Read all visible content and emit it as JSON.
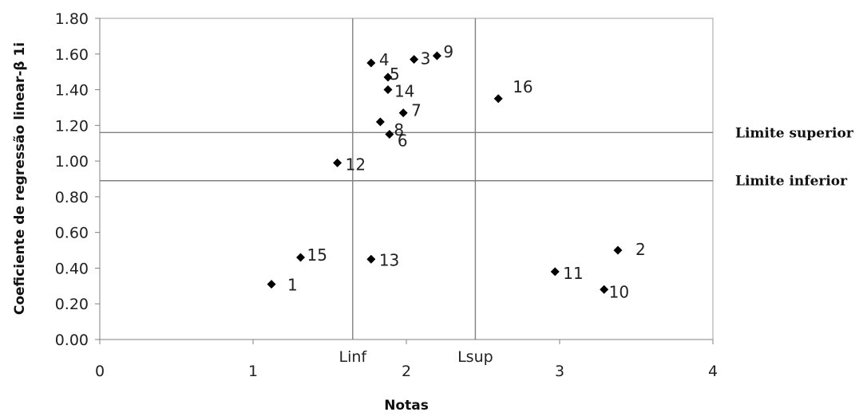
{
  "chart_data": {
    "type": "scatter",
    "xlabel": "Notas",
    "ylabel": "Coeficiente de regressão linear-β 1i",
    "xlim": [
      0,
      4
    ],
    "ylim": [
      0,
      1.8
    ],
    "x_ticks": [
      "0",
      "1",
      "2",
      "3",
      "4"
    ],
    "y_ticks": [
      "0.00",
      "0.20",
      "0.40",
      "0.60",
      "0.80",
      "1.00",
      "1.20",
      "1.40",
      "1.60",
      "1.80"
    ],
    "grid": "none",
    "marker": "diamond",
    "points": [
      {
        "label": "1",
        "x": 1.12,
        "y": 0.31
      },
      {
        "label": "2",
        "x": 3.38,
        "y": 0.5
      },
      {
        "label": "3",
        "x": 2.05,
        "y": 1.57
      },
      {
        "label": "4",
        "x": 1.77,
        "y": 1.55
      },
      {
        "label": "5",
        "x": 1.88,
        "y": 1.47
      },
      {
        "label": "6",
        "x": 1.89,
        "y": 1.15
      },
      {
        "label": "7",
        "x": 1.98,
        "y": 1.27
      },
      {
        "label": "8",
        "x": 1.83,
        "y": 1.22
      },
      {
        "label": "9",
        "x": 2.2,
        "y": 1.59
      },
      {
        "label": "10",
        "x": 3.29,
        "y": 0.28
      },
      {
        "label": "11",
        "x": 2.97,
        "y": 0.38
      },
      {
        "label": "12",
        "x": 1.55,
        "y": 0.99
      },
      {
        "label": "13",
        "x": 1.77,
        "y": 0.45
      },
      {
        "label": "14",
        "x": 1.88,
        "y": 1.4
      },
      {
        "label": "15",
        "x": 1.31,
        "y": 0.46
      },
      {
        "label": "16",
        "x": 2.6,
        "y": 1.35
      }
    ],
    "reference_lines": {
      "vertical": [
        {
          "label": "Linf",
          "x": 1.65
        },
        {
          "label": "Lsup",
          "x": 2.45
        }
      ],
      "horizontal": [
        {
          "label": "Limite superior",
          "y": 1.16
        },
        {
          "label": "Limite inferior",
          "y": 0.89
        }
      ]
    }
  },
  "colors": {
    "marker": "#000000",
    "reference_line": "#808080",
    "axis": "#808080",
    "plot_border": "#a0a0a0"
  }
}
